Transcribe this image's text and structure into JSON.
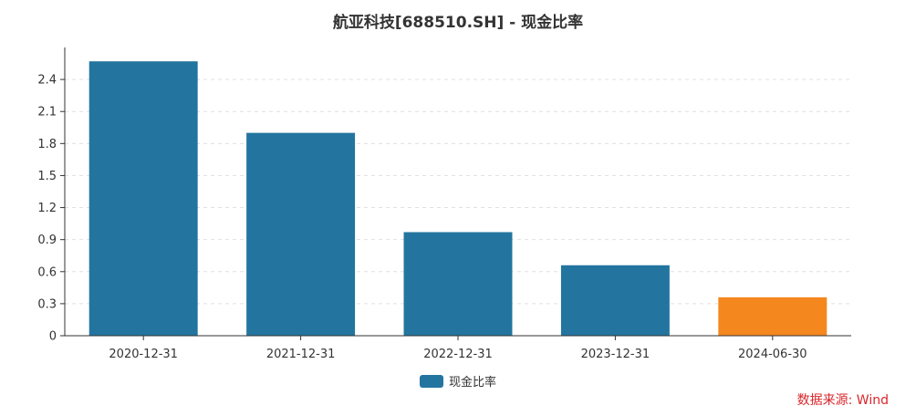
{
  "title": "航亚科技[688510.SH] - 现金比率",
  "source": "数据来源: Wind",
  "legend": {
    "label": "现金比率",
    "color": "#23759f"
  },
  "chart_data": {
    "type": "bar",
    "categories": [
      "2020-12-31",
      "2021-12-31",
      "2022-12-31",
      "2023-12-31",
      "2024-06-30"
    ],
    "series": [
      {
        "name": "现金比率",
        "values": [
          2.57,
          1.9,
          0.97,
          0.66,
          0.36
        ]
      }
    ],
    "colors": [
      "#23759f",
      "#23759f",
      "#23759f",
      "#23759f",
      "#f5871f"
    ],
    "yticks": [
      0,
      0.3,
      0.6,
      0.9,
      1.2,
      1.5,
      1.8,
      2.1,
      2.4
    ],
    "ytick_labels": [
      "0",
      "0.3",
      "0.6",
      "0.9",
      "1.2",
      "1.5",
      "1.8",
      "2.1",
      "2.4"
    ],
    "ylim": [
      0,
      2.7
    ],
    "grid": true,
    "legend_position": "bottom"
  }
}
